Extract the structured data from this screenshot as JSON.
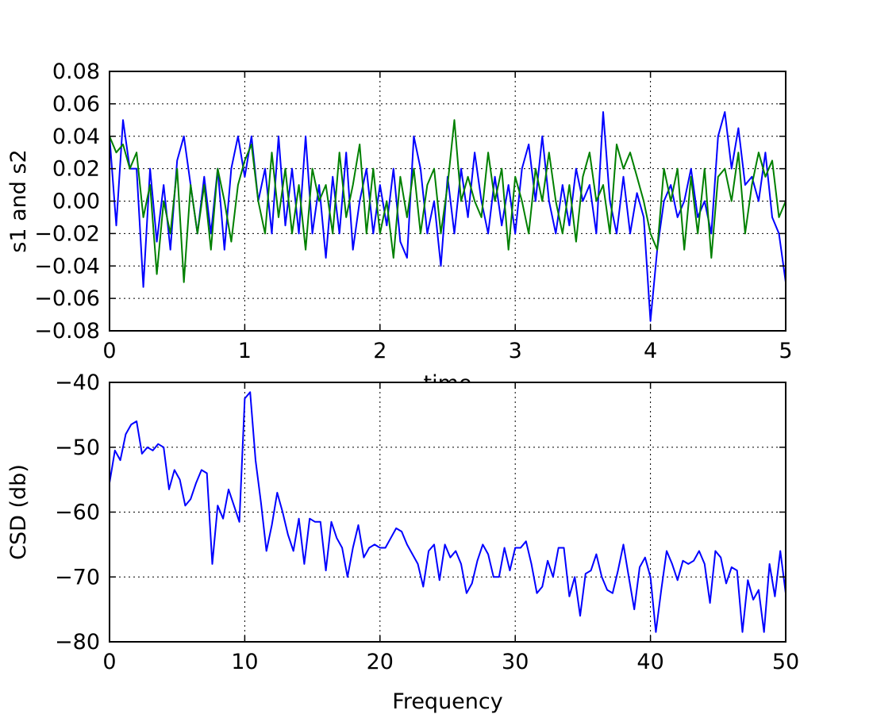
{
  "chart_data": [
    {
      "type": "line",
      "title": "",
      "xlabel": "time",
      "ylabel": "s1 and s2",
      "xlim": [
        0,
        5
      ],
      "ylim": [
        -0.08,
        0.08
      ],
      "xticks": [
        0,
        1,
        2,
        3,
        4,
        5
      ],
      "yticks": [
        -0.08,
        -0.06,
        -0.04,
        -0.02,
        0.0,
        0.02,
        0.04,
        0.06,
        0.08
      ],
      "xtick_labels": [
        "0",
        "1",
        "2",
        "3",
        "4",
        "5"
      ],
      "ytick_labels": [
        "−0.08",
        "−0.06",
        "−0.04",
        "−0.02",
        "0.00",
        "0.02",
        "0.04",
        "0.06",
        "0.08"
      ],
      "grid": true,
      "x": [
        0.0,
        0.05,
        0.1,
        0.15,
        0.2,
        0.25,
        0.3,
        0.35,
        0.4,
        0.45,
        0.5,
        0.55,
        0.6,
        0.65,
        0.7,
        0.75,
        0.8,
        0.85,
        0.9,
        0.95,
        1.0,
        1.05,
        1.1,
        1.15,
        1.2,
        1.25,
        1.3,
        1.35,
        1.4,
        1.45,
        1.5,
        1.55,
        1.6,
        1.65,
        1.7,
        1.75,
        1.8,
        1.85,
        1.9,
        1.95,
        2.0,
        2.05,
        2.1,
        2.15,
        2.2,
        2.25,
        2.3,
        2.35,
        2.4,
        2.45,
        2.5,
        2.55,
        2.6,
        2.65,
        2.7,
        2.75,
        2.8,
        2.85,
        2.9,
        2.95,
        3.0,
        3.05,
        3.1,
        3.15,
        3.2,
        3.25,
        3.3,
        3.35,
        3.4,
        3.45,
        3.5,
        3.55,
        3.6,
        3.65,
        3.7,
        3.75,
        3.8,
        3.85,
        3.9,
        3.95,
        4.0,
        4.05,
        4.1,
        4.15,
        4.2,
        4.25,
        4.3,
        4.35,
        4.4,
        4.45,
        4.5,
        4.55,
        4.6,
        4.65,
        4.7,
        4.75,
        4.8,
        4.85,
        4.9,
        4.95,
        5.0
      ],
      "series": [
        {
          "color": "#0000ff",
          "values": [
            0.04,
            -0.015,
            0.05,
            0.02,
            0.02,
            -0.053,
            0.02,
            -0.025,
            0.01,
            -0.03,
            0.025,
            0.04,
            0.01,
            -0.02,
            0.015,
            -0.02,
            0.02,
            -0.03,
            0.02,
            0.04,
            0.015,
            0.04,
            0.0,
            0.02,
            -0.02,
            0.04,
            -0.015,
            0.02,
            -0.02,
            0.04,
            -0.02,
            0.01,
            -0.035,
            0.015,
            -0.02,
            0.03,
            -0.03,
            0.0,
            0.02,
            -0.02,
            0.01,
            -0.015,
            0.02,
            -0.025,
            -0.035,
            0.04,
            0.02,
            -0.02,
            0.0,
            -0.04,
            0.015,
            -0.02,
            0.02,
            -0.01,
            0.03,
            0.0,
            -0.02,
            0.015,
            -0.015,
            0.01,
            -0.02,
            0.02,
            0.035,
            0.0,
            0.04,
            0.0,
            -0.02,
            0.01,
            -0.015,
            0.02,
            0.0,
            0.01,
            -0.02,
            0.055,
            0.0,
            -0.02,
            0.015,
            -0.02,
            0.005,
            -0.01,
            -0.074,
            -0.03,
            0.0,
            0.01,
            -0.01,
            0.0,
            0.02,
            -0.01,
            0.0,
            -0.02,
            0.04,
            0.055,
            0.02,
            0.045,
            0.01,
            0.015,
            0.0,
            0.03,
            -0.01,
            -0.02,
            -0.05
          ]
        },
        {
          "color": "#008000",
          "values": [
            0.04,
            0.03,
            0.035,
            0.02,
            0.03,
            -0.01,
            0.01,
            -0.045,
            0.0,
            -0.02,
            0.02,
            -0.05,
            0.01,
            -0.02,
            0.01,
            -0.03,
            0.02,
            0.0,
            -0.025,
            0.01,
            0.025,
            0.035,
            0.0,
            -0.02,
            0.03,
            -0.01,
            0.02,
            -0.02,
            0.01,
            -0.03,
            0.02,
            0.0,
            0.01,
            -0.02,
            0.03,
            -0.01,
            0.01,
            0.035,
            -0.02,
            0.02,
            -0.02,
            0.0,
            -0.035,
            0.015,
            -0.01,
            0.02,
            -0.02,
            0.01,
            0.02,
            -0.02,
            0.01,
            0.05,
            0.0,
            0.015,
            0.0,
            -0.01,
            0.03,
            0.0,
            0.02,
            -0.03,
            0.015,
            0.0,
            -0.02,
            0.02,
            0.0,
            0.03,
            0.0,
            -0.02,
            0.01,
            -0.025,
            0.015,
            0.03,
            0.0,
            0.01,
            -0.02,
            0.035,
            0.02,
            0.03,
            0.015,
            0.0,
            -0.02,
            -0.03,
            0.02,
            0.0,
            0.02,
            -0.03,
            0.015,
            -0.02,
            0.02,
            -0.035,
            0.015,
            0.02,
            0.0,
            0.03,
            -0.02,
            0.01,
            0.03,
            0.015,
            0.025,
            -0.01,
            0.0
          ]
        }
      ]
    },
    {
      "type": "line",
      "title": "",
      "xlabel": "Frequency",
      "ylabel": "CSD (db)",
      "xlim": [
        0,
        50
      ],
      "ylim": [
        -80,
        -40
      ],
      "xticks": [
        0,
        10,
        20,
        30,
        40,
        50
      ],
      "yticks": [
        -80,
        -70,
        -60,
        -50,
        -40
      ],
      "xtick_labels": [
        "0",
        "10",
        "20",
        "30",
        "40",
        "50"
      ],
      "ytick_labels": [
        "−80",
        "−70",
        "−60",
        "−50",
        "−40"
      ],
      "grid": true,
      "x": [
        0,
        0.4,
        0.8,
        1.2,
        1.6,
        2.0,
        2.4,
        2.8,
        3.2,
        3.6,
        4.0,
        4.4,
        4.8,
        5.2,
        5.6,
        6.0,
        6.4,
        6.8,
        7.2,
        7.6,
        8.0,
        8.4,
        8.8,
        9.2,
        9.6,
        10.0,
        10.4,
        10.8,
        11.2,
        11.6,
        12.0,
        12.4,
        12.8,
        13.2,
        13.6,
        14.0,
        14.4,
        14.8,
        15.2,
        15.6,
        16.0,
        16.4,
        16.8,
        17.2,
        17.6,
        18.0,
        18.4,
        18.8,
        19.2,
        19.6,
        20.0,
        20.4,
        20.8,
        21.2,
        21.6,
        22.0,
        22.4,
        22.8,
        23.2,
        23.6,
        24.0,
        24.4,
        24.8,
        25.2,
        25.6,
        26.0,
        26.4,
        26.8,
        27.2,
        27.6,
        28.0,
        28.4,
        28.8,
        29.2,
        29.6,
        30.0,
        30.4,
        30.8,
        31.2,
        31.6,
        32.0,
        32.4,
        32.8,
        33.2,
        33.6,
        34.0,
        34.4,
        34.8,
        35.2,
        35.6,
        36.0,
        36.4,
        36.8,
        37.2,
        37.6,
        38.0,
        38.4,
        38.8,
        39.2,
        39.6,
        40.0,
        40.4,
        40.8,
        41.2,
        41.6,
        42.0,
        42.4,
        42.8,
        43.2,
        43.6,
        44.0,
        44.4,
        44.8,
        45.2,
        45.6,
        46.0,
        46.4,
        46.8,
        47.2,
        47.6,
        48.0,
        48.4,
        48.8,
        49.2,
        49.6,
        50.0
      ],
      "series": [
        {
          "color": "#0000ff",
          "values": [
            -55.5,
            -50.5,
            -52,
            -48,
            -46.5,
            -46,
            -51,
            -50,
            -50.5,
            -49.5,
            -50,
            -56.5,
            -53.5,
            -55,
            -59,
            -58,
            -55.5,
            -53.5,
            -54,
            -68,
            -59,
            -61,
            -56.5,
            -59,
            -61.5,
            -42.5,
            -41.5,
            -52,
            -58.5,
            -66,
            -62,
            -57,
            -60,
            -63.5,
            -66,
            -61,
            -68,
            -61,
            -61.5,
            -61.5,
            -69,
            -61.5,
            -64,
            -65.5,
            -70,
            -65.5,
            -62,
            -67,
            -65.5,
            -65,
            -65.5,
            -65.5,
            -64,
            -62.5,
            -63,
            -65,
            -66.5,
            -68,
            -71.5,
            -66,
            -65,
            -70.5,
            -65,
            -67,
            -66,
            -68,
            -72.5,
            -71,
            -67.5,
            -65,
            -66.5,
            -70,
            -70,
            -65.5,
            -69,
            -65.5,
            -65.5,
            -64.5,
            -68,
            -72.5,
            -71.5,
            -67.5,
            -70,
            -65.5,
            -65.5,
            -73,
            -70,
            -76,
            -69.5,
            -69,
            -66.5,
            -70,
            -72,
            -72.5,
            -69,
            -65,
            -70,
            -75,
            -68.5,
            -67,
            -70,
            -78.5,
            -72,
            -66,
            -68,
            -70.5,
            -67.5,
            -68,
            -67.5,
            -66,
            -68,
            -74,
            -66,
            -67,
            -71,
            -68.5,
            -69,
            -78.5,
            -70.5,
            -73.5,
            -72,
            -78.5,
            -68,
            -73,
            -66,
            -72.5
          ]
        }
      ]
    }
  ]
}
